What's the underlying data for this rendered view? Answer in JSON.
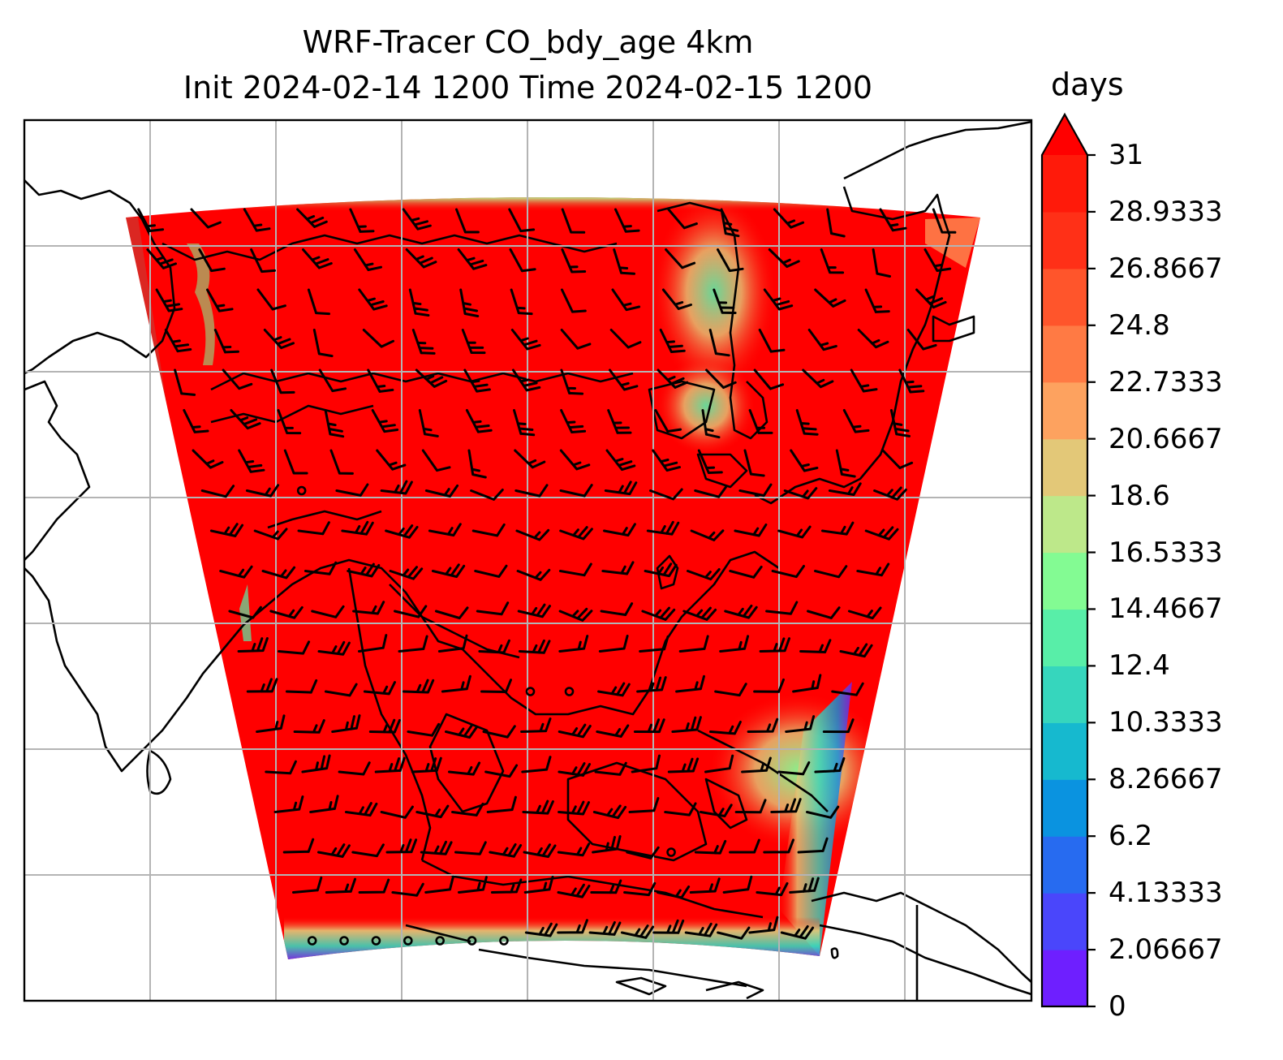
{
  "title": {
    "line1": "WRF-Tracer CO_bdy_age 4km",
    "line2": "Init 2024-02-14 1200 Time 2024-02-15 1200"
  },
  "colorbar": {
    "unit": "days",
    "min": 0,
    "max": 31,
    "extend": "max",
    "tick_labels": [
      "0",
      "2.06667",
      "4.13333",
      "6.2",
      "8.26667",
      "10.3333",
      "12.4",
      "14.4667",
      "16.5333",
      "18.6",
      "20.6667",
      "22.7333",
      "24.8",
      "26.8667",
      "28.9333",
      "31"
    ],
    "colors": [
      "#6e1fff",
      "#4a46fb",
      "#276bf0",
      "#0a93e0",
      "#16b9cf",
      "#36d6bd",
      "#58eea8",
      "#83fb93",
      "#bde88a",
      "#e3c878",
      "#fda25f",
      "#ff7a44",
      "#ff552b",
      "#ff3017",
      "#ff1a0a"
    ],
    "over_color": "#ff0000"
  },
  "map": {
    "field": "CO_bdy_age",
    "dominant_value_color": "#ff0000",
    "gridlines": true,
    "coastlines": true,
    "wind_barbs": true
  }
}
